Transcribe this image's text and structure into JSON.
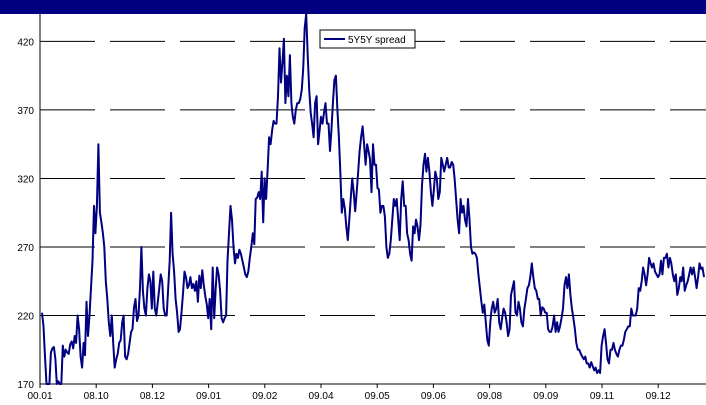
{
  "chart_data": {
    "type": "line",
    "title": "",
    "xlabel": "",
    "ylabel": "",
    "ylim": [
      170,
      440
    ],
    "yticks": [
      170,
      220,
      270,
      320,
      370,
      420
    ],
    "xticks": [
      "00.01",
      "08.10",
      "08.12",
      "09.01",
      "09.02",
      "09.04",
      "09.05",
      "09.06",
      "09.08",
      "09.09",
      "09.11",
      "09.12"
    ],
    "grid": "horizontal-dashed",
    "legend": "top-center",
    "colors": {
      "series": "#000080",
      "header": "#000080",
      "grid": "#000000"
    },
    "series": [
      {
        "name": "5Y5Y spread",
        "values": [
          222,
          212,
          190,
          170,
          162,
          160,
          193,
          196,
          197,
          188,
          170,
          172,
          167,
          162,
          198,
          190,
          195,
          193,
          192,
          199,
          201,
          196,
          205,
          200,
          220,
          210,
          190,
          182,
          200,
          191,
          230,
          205,
          220,
          240,
          260,
          300,
          280,
          300,
          345,
          295,
          288,
          280,
          270,
          245,
          232,
          215,
          205,
          220,
          200,
          182,
          188,
          192,
          200,
          202,
          215,
          220,
          190,
          188,
          192,
          200,
          208,
          210,
          226,
          232,
          216,
          220,
          240,
          270,
          238,
          225,
          220,
          240,
          250,
          245,
          225,
          252,
          225,
          220,
          230,
          240,
          250,
          245,
          225,
          220,
          220,
          240,
          260,
          295,
          265,
          252,
          232,
          222,
          208,
          210,
          222,
          236,
          252,
          248,
          240,
          242,
          248,
          240,
          243,
          238,
          245,
          230,
          249,
          240,
          253,
          242,
          234,
          228,
          218,
          232,
          210,
          255,
          218,
          240,
          255,
          250,
          238,
          218,
          215,
          218,
          220,
          260,
          280,
          300,
          290,
          270,
          258,
          265,
          262,
          268,
          265,
          260,
          255,
          250,
          248,
          252,
          262,
          270,
          280,
          272,
          305,
          306,
          310,
          305,
          325,
          288,
          320,
          305,
          326,
          350,
          345,
          355,
          362,
          360,
          360,
          380,
          415,
          390,
          405,
          422,
          375,
          395,
          380,
          410,
          375,
          365,
          360,
          370,
          375,
          375,
          378,
          385,
          400,
          430,
          440,
          410,
          385,
          368,
          360,
          350,
          375,
          380,
          345,
          355,
          365,
          360,
          368,
          375,
          360,
          360,
          340,
          355,
          375,
          392,
          395,
          370,
          350,
          325,
          295,
          305,
          298,
          285,
          275,
          290,
          305,
          320,
          310,
          296,
          310,
          325,
          340,
          350,
          358,
          345,
          330,
          345,
          340,
          334,
          310,
          345,
          330,
          330,
          313,
          312,
          295,
          300,
          300,
          292,
          270,
          262,
          265,
          275,
          290,
          305,
          300,
          305,
          290,
          275,
          305,
          318,
          300,
          300,
          280,
          275,
          265,
          260,
          285,
          280,
          290,
          285,
          275,
          286,
          315,
          330,
          338,
          325,
          335,
          325,
          310,
          300,
          312,
          325,
          320,
          305,
          310,
          335,
          330,
          325,
          330,
          335,
          328,
          328,
          332,
          330,
          320,
          305,
          290,
          280,
          305,
          295,
          300,
          290,
          285,
          305,
          290,
          270,
          265,
          266,
          265,
          262,
          250,
          240,
          230,
          222,
          228,
          215,
          202,
          198,
          215,
          225,
          230,
          222,
          225,
          232,
          215,
          210,
          218,
          225,
          222,
          215,
          205,
          210,
          235,
          240,
          245,
          222,
          220,
          230,
          225,
          215,
          212,
          225,
          232,
          240,
          242,
          248,
          258,
          248,
          240,
          238,
          232,
          232,
          220,
          226,
          225,
          222,
          222,
          210,
          208,
          208,
          212,
          220,
          208,
          215,
          208,
          212,
          218,
          225,
          242,
          248,
          240,
          250,
          235,
          225,
          218,
          210,
          200,
          195,
          195,
          192,
          190,
          188,
          190,
          185,
          185,
          182,
          186,
          183,
          180,
          182,
          178,
          180,
          178,
          198,
          205,
          210,
          200,
          188,
          185,
          195,
          195,
          200,
          195,
          192,
          190,
          195,
          198,
          198,
          202,
          208,
          210,
          212,
          212,
          225,
          220,
          220,
          220,
          225,
          240,
          238,
          245,
          255,
          250,
          242,
          250,
          262,
          258,
          255,
          258,
          252,
          250,
          248,
          250,
          260,
          250,
          262,
          262,
          265,
          255,
          262,
          258,
          250,
          245,
          250,
          235,
          240,
          248,
          245,
          255,
          238,
          242,
          245,
          250,
          255,
          250,
          255,
          248,
          240,
          248,
          258,
          254,
          255,
          248
        ]
      }
    ]
  }
}
